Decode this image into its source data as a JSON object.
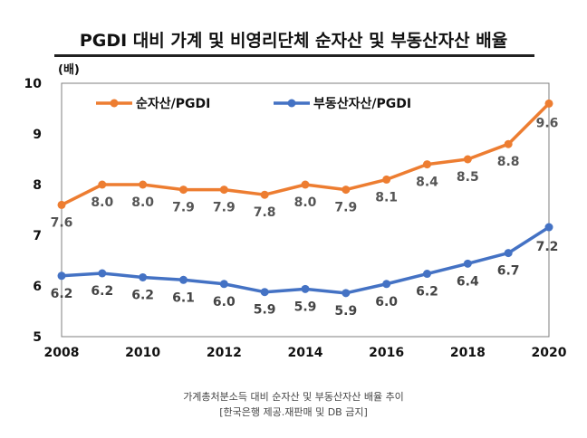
{
  "chart_data": {
    "type": "line",
    "title": "PGDI 대비 가계 및 비영리단체 순자산 및 부동산자산 배율",
    "unit": "(배)",
    "x": [
      "2008",
      "2009",
      "2010",
      "2011",
      "2012",
      "2013",
      "2014",
      "2015",
      "2016",
      "2017",
      "2018",
      "2019",
      "2020"
    ],
    "x_tick_labels": [
      "2008",
      "2010",
      "2012",
      "2014",
      "2016",
      "2018",
      "2020"
    ],
    "y_ticks": [
      5,
      6,
      7,
      8,
      9,
      10
    ],
    "ylim": [
      5,
      10
    ],
    "legend_position": "top-left",
    "grid": false,
    "series": [
      {
        "name": "순자산/PGDI",
        "color": "#ED7D31",
        "values": [
          7.6,
          8.0,
          8.0,
          7.9,
          7.9,
          7.8,
          8.0,
          7.9,
          8.1,
          8.4,
          8.5,
          8.8,
          9.6
        ],
        "labels": [
          "7.6",
          "8.0",
          "8.0",
          "7.9",
          "7.9",
          "7.8",
          "8.0",
          "7.9",
          "8.1",
          "8.4",
          "8.5",
          "8.8",
          "9.6"
        ]
      },
      {
        "name": "부동산자산/PGDI",
        "color": "#4472C4",
        "values": [
          6.2,
          6.25,
          6.17,
          6.12,
          6.04,
          5.88,
          5.94,
          5.86,
          6.04,
          6.24,
          6.44,
          6.65,
          7.16
        ],
        "labels": [
          "6.2",
          "6.2",
          "6.2",
          "6.1",
          "6.0",
          "5.9",
          "5.9",
          "5.9",
          "6.0",
          "6.2",
          "6.4",
          "6.7",
          "7.2"
        ]
      }
    ]
  },
  "caption": {
    "line1": "가계총처분소득 대비 순자산 및 부동산자산 배율 추이",
    "line2": "[한국은행 제공.재판매 및 DB 금지]"
  }
}
